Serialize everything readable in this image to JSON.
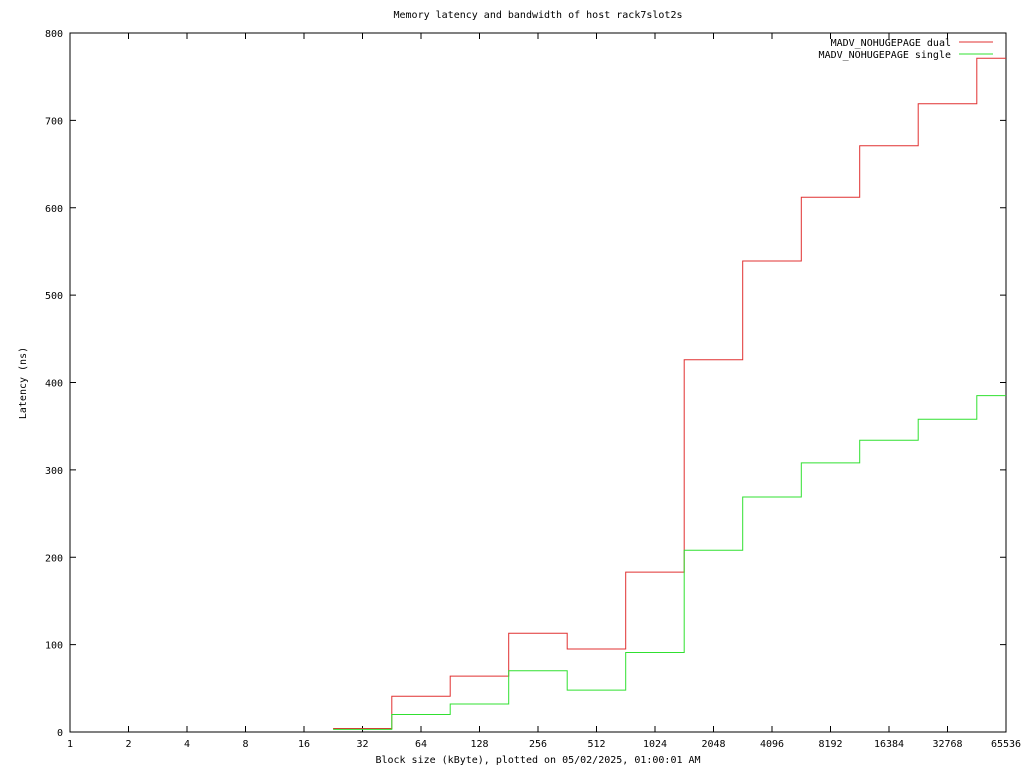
{
  "chart_data": {
    "type": "line",
    "title": "Memory latency and bandwidth of host rack7slot2s",
    "xlabel": "Block size (kByte), plotted on 05/02/2025, 01:00:01 AM",
    "ylabel": "Latency (ns)",
    "x_scale": "log2",
    "xlim": [
      1,
      65536
    ],
    "ylim": [
      0,
      800
    ],
    "x_ticks": [
      "1",
      "2",
      "4",
      "8",
      "16",
      "32",
      "64",
      "128",
      "256",
      "512",
      "1024",
      "2048",
      "4096",
      "8192",
      "16384",
      "32768",
      "65536"
    ],
    "y_ticks": [
      "0",
      "100",
      "200",
      "300",
      "400",
      "500",
      "600",
      "700",
      "800"
    ],
    "grid": false,
    "legend_position": "top-right",
    "step": true,
    "x": [
      22.6,
      45.3,
      90.5,
      181,
      362,
      724,
      1448,
      2896,
      5793,
      11585,
      23170,
      46341
    ],
    "x_end": 65536,
    "series": [
      {
        "name": "MADV_NOHUGEPAGE dual",
        "color": "#e03030",
        "values": [
          4,
          41,
          64,
          113,
          95,
          183,
          426,
          539,
          612,
          671,
          719,
          771
        ]
      },
      {
        "name": "MADV_NOHUGEPAGE single",
        "color": "#30e030",
        "values": [
          3,
          20,
          32,
          70,
          48,
          91,
          208,
          269,
          308,
          334,
          358,
          385
        ]
      }
    ]
  }
}
